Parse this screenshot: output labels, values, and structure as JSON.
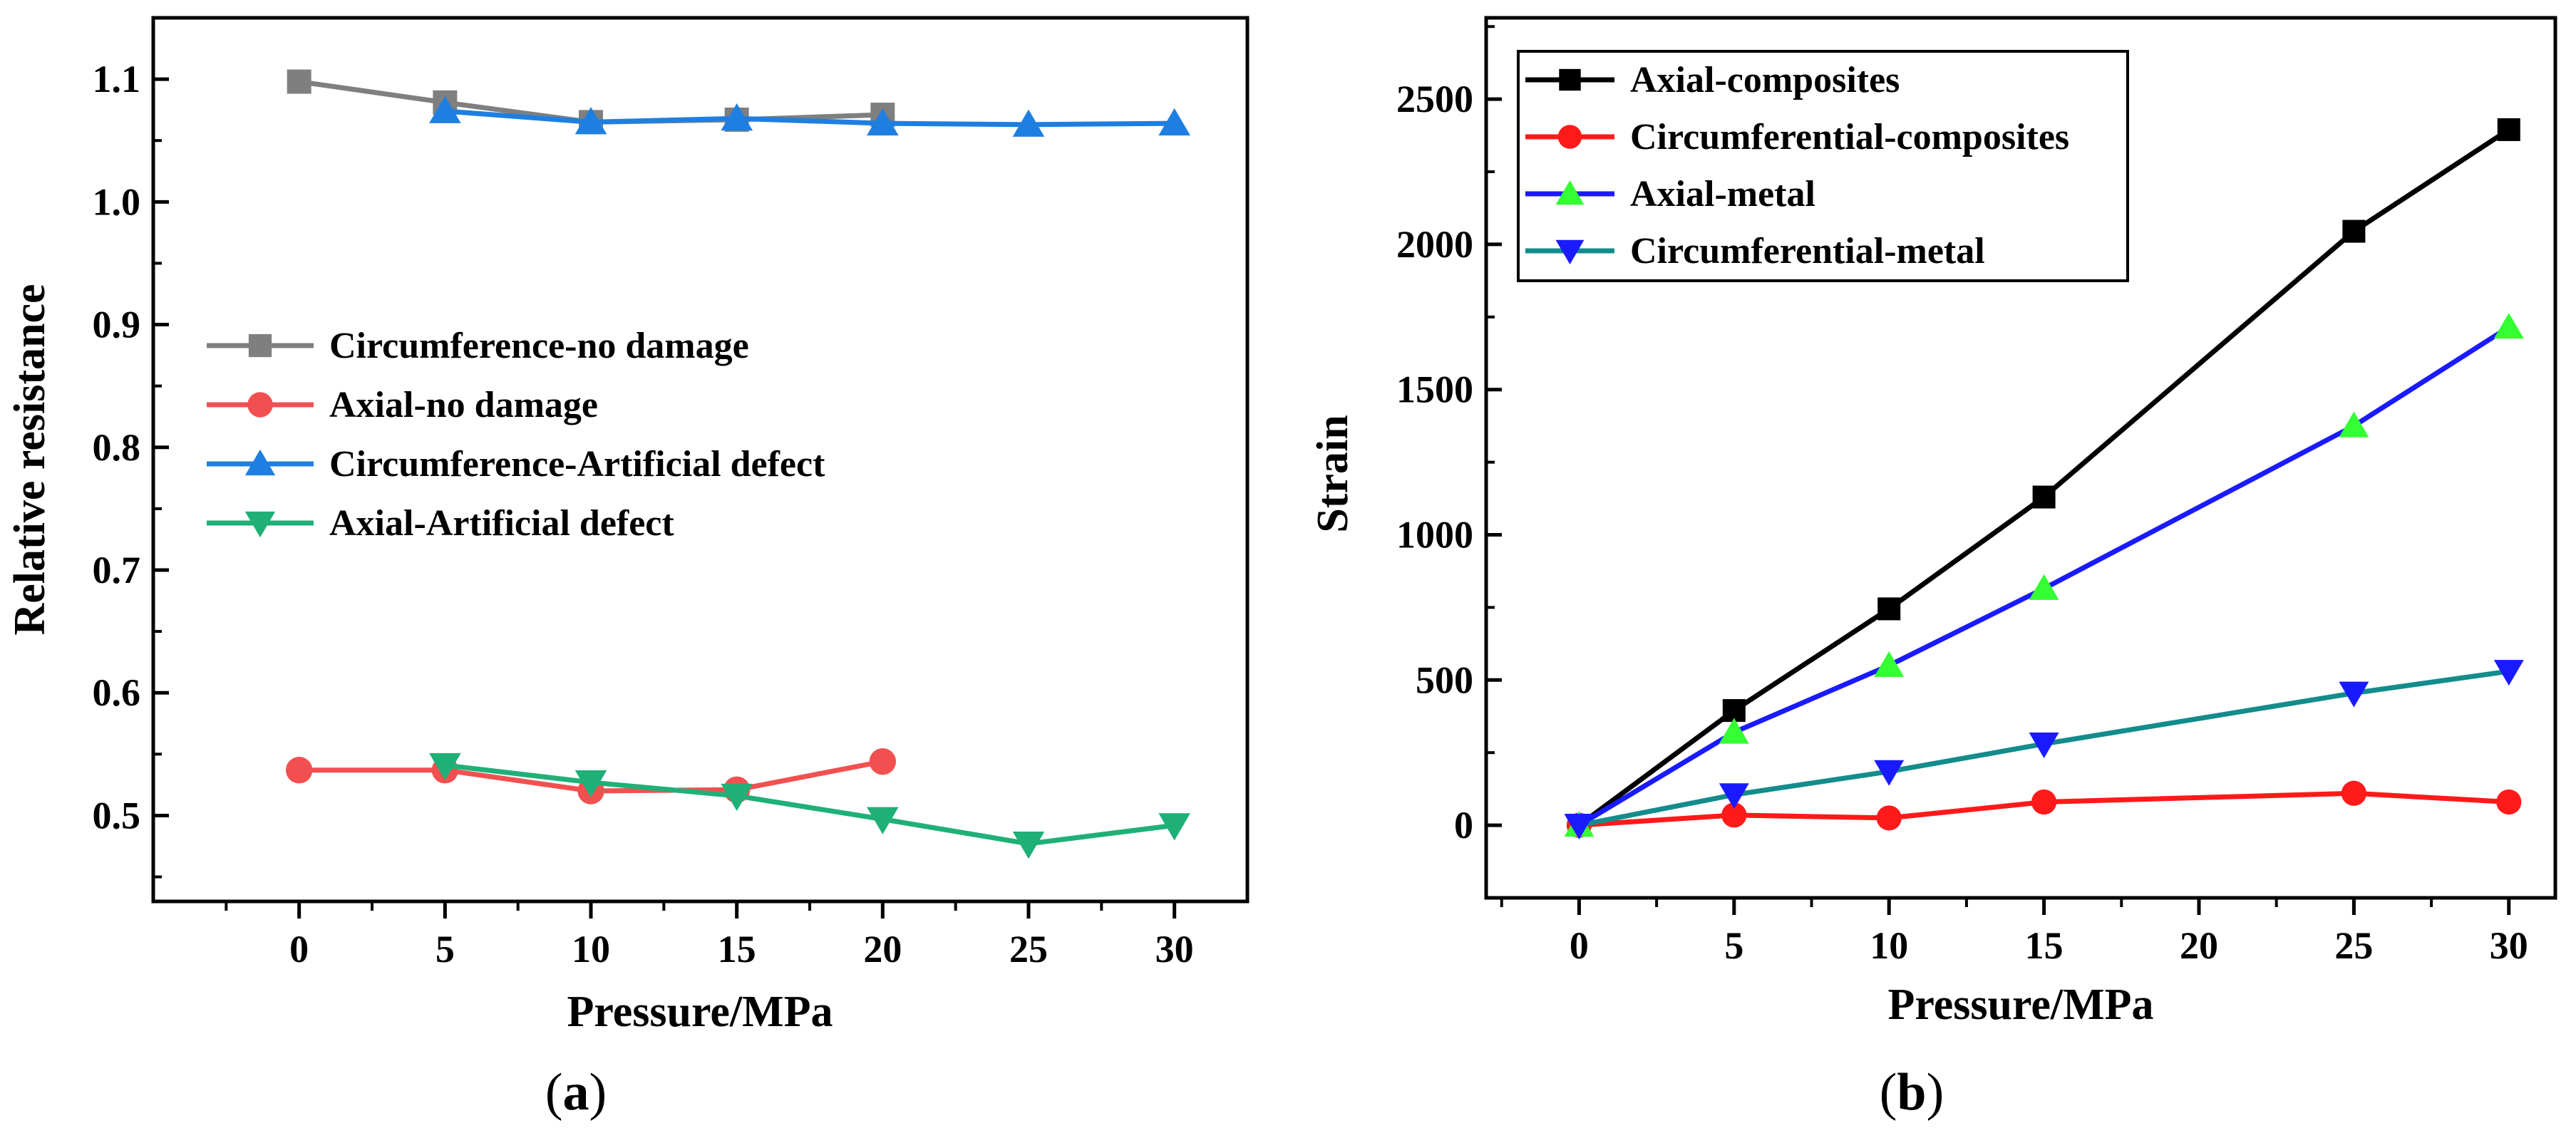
{
  "chart_data": [
    {
      "type": "line",
      "panel_label": "a",
      "title": "",
      "xlabel": "Pressure/MPa",
      "ylabel": "Relative resistance",
      "xlim": [
        -5,
        32.5
      ],
      "ylim": [
        0.43,
        1.15
      ],
      "xticks": [
        0,
        5,
        10,
        15,
        20,
        25,
        30
      ],
      "yticks": [
        0.5,
        0.6,
        0.7,
        0.8,
        0.9,
        1.0,
        1.1
      ],
      "ytick_labels": [
        "0.5",
        "0.6",
        "0.7",
        "0.8",
        "0.9",
        "1.0",
        "1.1"
      ],
      "grid": false,
      "legend_position": "center-left",
      "series": [
        {
          "name": "Circumference-no damage",
          "color": "#7f7f7f",
          "marker": "square",
          "x": [
            0,
            5,
            10,
            15,
            20
          ],
          "y": [
            1.098,
            1.081,
            1.065,
            1.067,
            1.071
          ]
        },
        {
          "name": "Axial-no damage",
          "color": "#f25050",
          "marker": "circle",
          "x": [
            0,
            5,
            10,
            15,
            20
          ],
          "y": [
            0.537,
            0.537,
            0.52,
            0.521,
            0.544
          ]
        },
        {
          "name": "Circumference-Artificial defect",
          "color": "#1f7fe0",
          "marker": "triangle-up",
          "x": [
            5,
            10,
            15,
            20,
            25,
            30
          ],
          "y": [
            1.074,
            1.065,
            1.068,
            1.064,
            1.063,
            1.064
          ]
        },
        {
          "name": "Axial-Artificial defect",
          "color": "#1fb077",
          "marker": "triangle-down",
          "x": [
            5,
            10,
            15,
            20,
            25,
            30
          ],
          "y": [
            0.541,
            0.527,
            0.516,
            0.497,
            0.477,
            0.492
          ]
        }
      ]
    },
    {
      "type": "line",
      "panel_label": "b",
      "title": "",
      "xlabel": "Pressure/MPa",
      "ylabel": "Strain",
      "xlim": [
        -3,
        31.5
      ],
      "ylim": [
        -250,
        2780
      ],
      "xticks": [
        0,
        5,
        10,
        15,
        20,
        25,
        30
      ],
      "yticks": [
        0,
        500,
        1000,
        1500,
        2000,
        2500
      ],
      "ytick_labels": [
        "0",
        "500",
        "1000",
        "1500",
        "2000",
        "2500"
      ],
      "grid": false,
      "legend_position": "top-left",
      "series": [
        {
          "name": "Axial-composites",
          "color": "#000000",
          "marker_color": "#000000",
          "marker": "square",
          "x": [
            0,
            5,
            10,
            15,
            25,
            30
          ],
          "y": [
            0,
            395,
            745,
            1130,
            2045,
            2395
          ]
        },
        {
          "name": "Circumferential-composites",
          "color": "#ff1a1a",
          "marker_color": "#ff1a1a",
          "marker": "circle",
          "x": [
            0,
            5,
            10,
            15,
            25,
            30
          ],
          "y": [
            0,
            35,
            25,
            80,
            110,
            80
          ]
        },
        {
          "name": "Axial-metal",
          "color": "#1a1aff",
          "marker_color": "#33ff33",
          "marker": "triangle-up",
          "x": [
            0,
            5,
            10,
            15,
            25,
            30
          ],
          "y": [
            0,
            320,
            550,
            815,
            1375,
            1715
          ]
        },
        {
          "name": "Circumferential-metal",
          "color": "#138c8c",
          "marker_color": "#1a1aff",
          "marker": "triangle-down",
          "x": [
            0,
            5,
            10,
            15,
            25,
            30
          ],
          "y": [
            0,
            105,
            185,
            280,
            455,
            530
          ]
        }
      ]
    }
  ]
}
